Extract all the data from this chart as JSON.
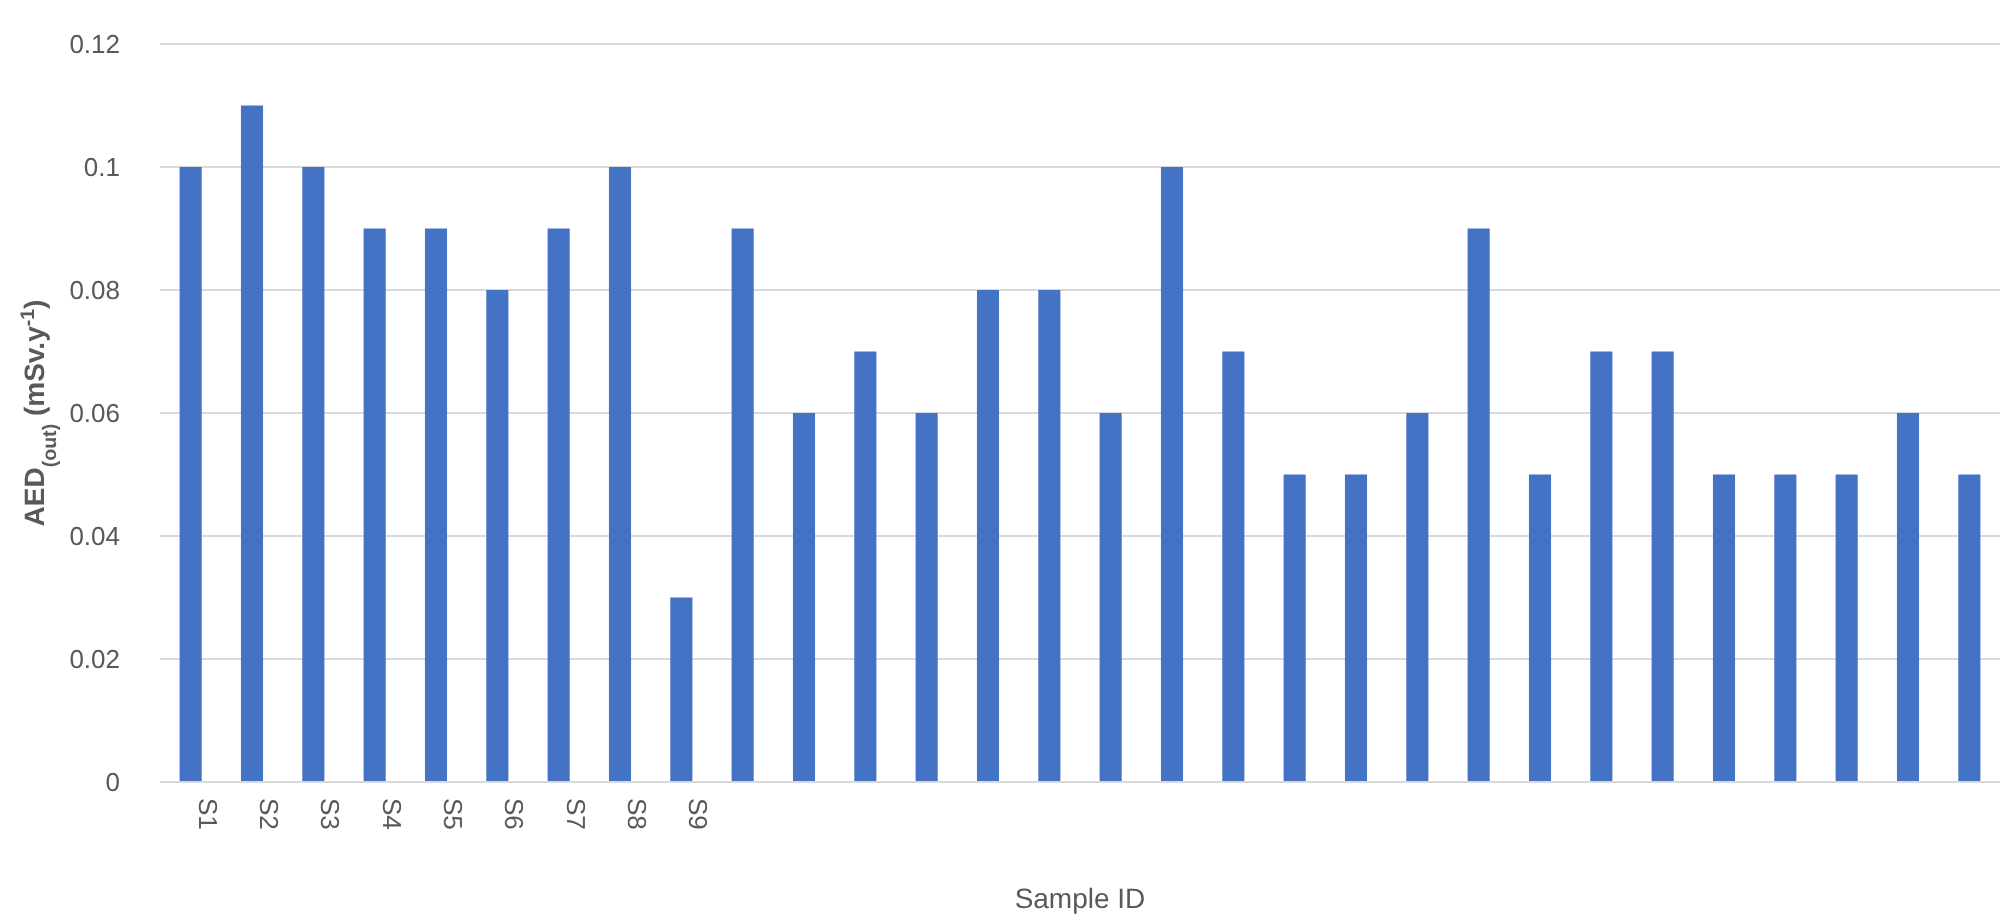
{
  "chart_data": {
    "type": "bar",
    "xlabel": "Sample ID",
    "ylabel": "AED$_{(out)}$ (mSv.y$^{-1}$)",
    "categories": [
      "S1",
      "S2",
      "S3",
      "S4",
      "S5",
      "S6",
      "S7",
      "S8",
      "S9",
      null,
      null,
      null,
      null,
      null,
      null,
      null,
      null,
      null,
      null,
      null,
      null,
      null,
      null,
      null,
      null,
      null,
      null,
      null,
      null,
      null
    ],
    "values": [
      0.1,
      0.11,
      0.1,
      0.09,
      0.09,
      0.08,
      0.09,
      0.1,
      0.03,
      0.09,
      0.06,
      0.07,
      0.06,
      0.08,
      0.08,
      0.06,
      0.1,
      0.07,
      0.05,
      0.05,
      0.06,
      0.09,
      0.05,
      0.07,
      0.07,
      0.05,
      0.05,
      0.05,
      0.06,
      0.05
    ],
    "color": "#4472c4",
    "ylim": [
      0,
      0.12
    ],
    "yticks": [
      0,
      0.02,
      0.04,
      0.06,
      0.08,
      0.1,
      0.12
    ],
    "grid": "y"
  }
}
